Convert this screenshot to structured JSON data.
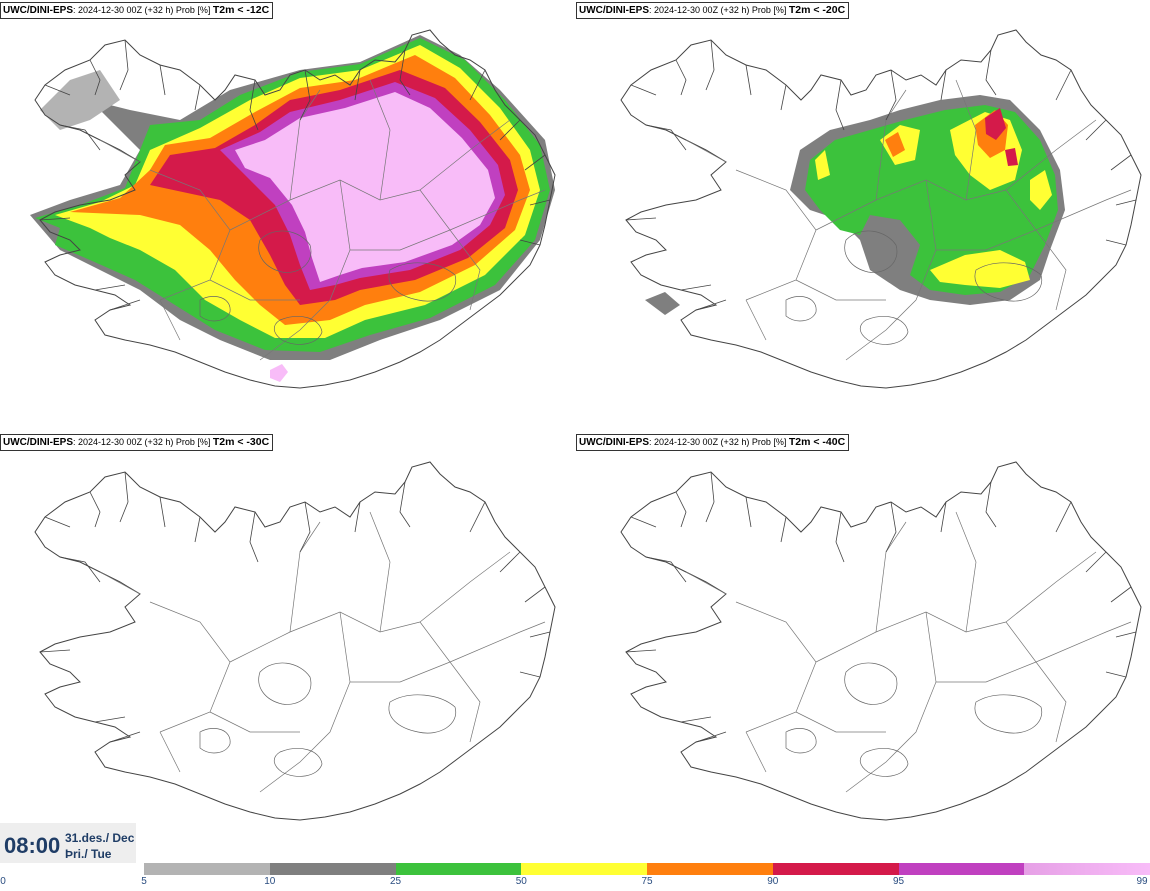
{
  "panels": [
    {
      "model": "UWC/DINI-EPS",
      "run": "2024-12-30 00Z (+32 h) Prob [%]",
      "variable": "T2m < -12C",
      "coverage": "high"
    },
    {
      "model": "UWC/DINI-EPS",
      "run": "2024-12-30 00Z (+32 h) Prob [%]",
      "variable": "T2m < -20C",
      "coverage": "medium"
    },
    {
      "model": "UWC/DINI-EPS",
      "run": "2024-12-30 00Z (+32 h) Prob [%]",
      "variable": "T2m < -30C",
      "coverage": "none"
    },
    {
      "model": "UWC/DINI-EPS",
      "run": "2024-12-30 00Z (+32 h) Prob [%]",
      "variable": "T2m < -40C",
      "coverage": "none"
    }
  ],
  "clock": {
    "time": "08:00",
    "date_line1": "31.des./ Dec",
    "date_line2": "Þri./ Tue"
  },
  "colorbar": {
    "ticks": [
      "0",
      "5",
      "10",
      "25",
      "50",
      "75",
      "90",
      "95",
      "99"
    ],
    "colors": [
      "#b3b3b3",
      "#7f7f7f",
      "#3cc23c",
      "#ffff33",
      "#ff7f0e",
      "#d41a4a",
      "#c040c0",
      "#f8bcf8"
    ]
  }
}
